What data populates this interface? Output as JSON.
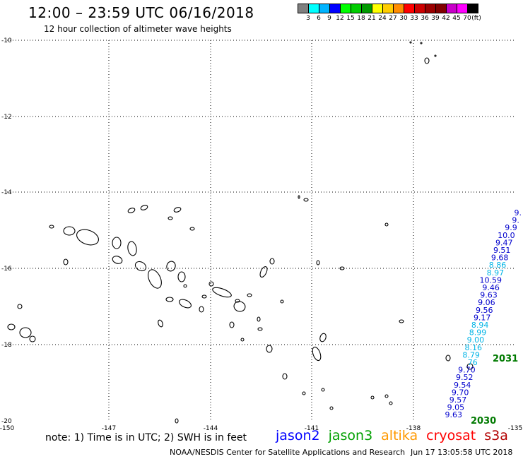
{
  "header": {
    "title": "12:00 – 23:59 UTC 06/16/2018",
    "subtitle": "12 hour collection of altimeter wave heights"
  },
  "legend": {
    "colors": [
      "#7f7f7f",
      "#00ffff",
      "#00b4ff",
      "#0000ff",
      "#00ff00",
      "#00cd00",
      "#009a00",
      "#ffff00",
      "#ffcd00",
      "#ff8c00",
      "#ff0000",
      "#cd0000",
      "#9a0000",
      "#800000",
      "#c800c8",
      "#ff00ff",
      "#000000"
    ],
    "labels": [
      "3",
      "6",
      "9",
      "12",
      "15",
      "18",
      "21",
      "24",
      "27",
      "30",
      "33",
      "36",
      "39",
      "42",
      "45",
      "70",
      "(ft)"
    ]
  },
  "axes": {
    "lat_labels": [
      "-10",
      "-12",
      "-14",
      "-16",
      "-18",
      "-20"
    ],
    "lon_labels": [
      "-150",
      "-147",
      "-144",
      "-141",
      "-138",
      "-135"
    ]
  },
  "wave_readings": [
    {
      "v": "9.",
      "c": "#0000cd"
    },
    {
      "v": "9.",
      "c": "#0000cd"
    },
    {
      "v": "9.9",
      "c": "#0000cd"
    },
    {
      "v": "10.0",
      "c": "#0000cd"
    },
    {
      "v": "9.47",
      "c": "#0000cd"
    },
    {
      "v": "9.51",
      "c": "#0000cd"
    },
    {
      "v": "9.68",
      "c": "#0000cd"
    },
    {
      "v": "8.86",
      "c": "#00b4e6"
    },
    {
      "v": "8.97",
      "c": "#00b4e6"
    },
    {
      "v": "10.59",
      "c": "#0000cd"
    },
    {
      "v": "9.46",
      "c": "#0000cd"
    },
    {
      "v": "9.63",
      "c": "#0000cd"
    },
    {
      "v": "9.06",
      "c": "#0000cd"
    },
    {
      "v": "9.56",
      "c": "#0000cd"
    },
    {
      "v": "9.17",
      "c": "#0000cd"
    },
    {
      "v": "8.94",
      "c": "#00b4e6"
    },
    {
      "v": "8.99",
      "c": "#00b4e6"
    },
    {
      "v": "9.00",
      "c": "#00b4e6"
    },
    {
      "v": "8.16",
      "c": "#00b4e6"
    },
    {
      "v": "8.79",
      "c": "#00b4e6"
    },
    {
      "v": "76",
      "c": "#00b4e6"
    },
    {
      "v": "9.70",
      "c": "#0000cd"
    },
    {
      "v": "9.52",
      "c": "#0000cd"
    },
    {
      "v": "9.54",
      "c": "#0000cd"
    },
    {
      "v": "9.70",
      "c": "#0000cd"
    },
    {
      "v": "9.57",
      "c": "#0000cd"
    },
    {
      "v": "9.05",
      "c": "#0000cd"
    },
    {
      "v": "9.63",
      "c": "#0000cd"
    }
  ],
  "track_labels": {
    "upper": "2031",
    "lower": "2030"
  },
  "footer": {
    "note": "note:  1) Time is in UTC;  2) SWH is in feet",
    "satellites": [
      {
        "name": "jason2",
        "color": "#0000ff"
      },
      {
        "name": "jason3",
        "color": "#00a000"
      },
      {
        "name": "altika",
        "color": "#ff9900"
      },
      {
        "name": "cryosat",
        "color": "#ff0000"
      },
      {
        "name": "s3a",
        "color": "#b30000"
      }
    ],
    "credit": "NOAA/NESDIS Center for Satellite Applications and Research",
    "timestamp": "Jun 17 13:05:58 UTC 2018"
  }
}
